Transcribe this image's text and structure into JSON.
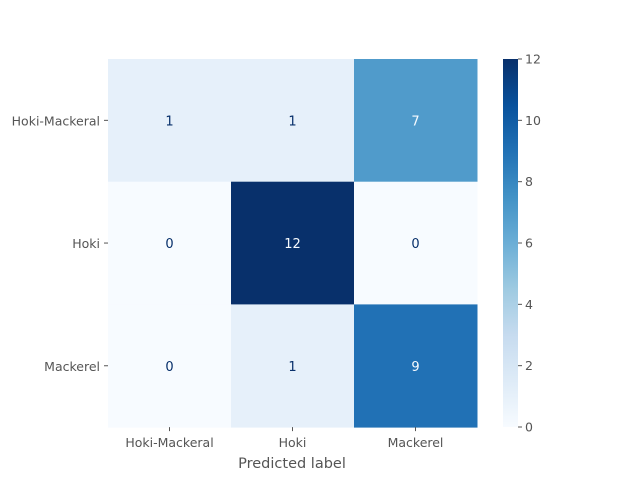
{
  "chart_data": {
    "type": "heatmap",
    "title": "",
    "xlabel": "Predicted label",
    "ylabel": "",
    "x_categories": [
      "Hoki-Mackeral",
      "Hoki",
      "Mackerel"
    ],
    "y_categories": [
      "Hoki-Mackeral",
      "Hoki",
      "Mackerel"
    ],
    "values": [
      [
        1,
        1,
        7
      ],
      [
        0,
        12,
        0
      ],
      [
        0,
        1,
        9
      ]
    ],
    "colorbar": {
      "range": [
        0,
        12
      ],
      "ticks": [
        "0",
        "2",
        "4",
        "6",
        "8",
        "10",
        "12"
      ],
      "colormap": "Blues"
    },
    "colors": {
      "low": "#f7fbff",
      "high": "#08306b",
      "text_dark": "#08306b",
      "text_light": "#f7fbff",
      "axis_text": "#555555"
    }
  }
}
